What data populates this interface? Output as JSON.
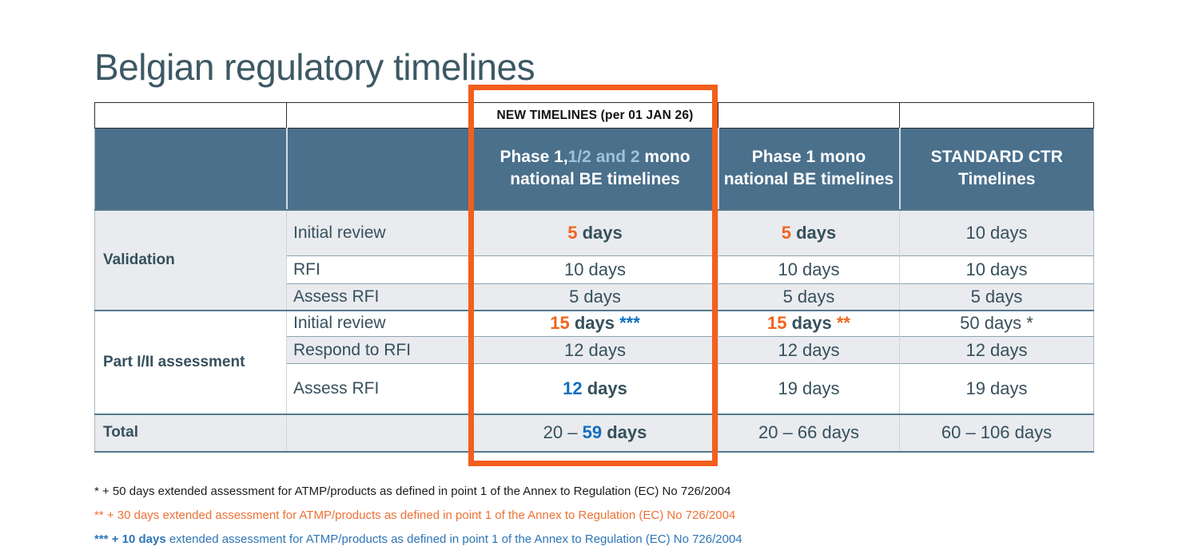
{
  "title": "Belgian regulatory timelines",
  "colors": {
    "header_bg": "#4a708c",
    "highlight_border": "#f25f1d",
    "accent_orange": "#f0651c",
    "accent_blue": "#0f6fc0",
    "light_row": "#e9ebef",
    "body_text": "#36505c"
  },
  "table": {
    "banner": "NEW TIMELINES (per 01 JAN 26)",
    "headers": {
      "col3": [
        {
          "t": "Phase 1,",
          "s": "white"
        },
        {
          "t": "1/2 and 2",
          "s": "lightblue"
        },
        {
          "t": " mono national BE timelines",
          "s": "white"
        }
      ],
      "col4": [
        {
          "t": "Phase 1 mono national BE timelines",
          "s": "white"
        }
      ],
      "col5": [
        {
          "t": "STANDARD CTR Timelines",
          "s": "white"
        }
      ]
    },
    "groups": {
      "validation": "Validation",
      "part": "Part I/II assessment",
      "total": "Total"
    },
    "rows": [
      {
        "step": "Initial review",
        "c3": [
          {
            "t": "5",
            "s": "orange"
          },
          {
            "t": " days",
            "s": "bold"
          }
        ],
        "c4": [
          {
            "t": "5",
            "s": "orange"
          },
          {
            "t": " days",
            "s": "bold"
          }
        ],
        "c5": [
          {
            "t": "10 days",
            "s": "plain"
          }
        ]
      },
      {
        "step": "RFI",
        "c3": [
          {
            "t": "10 days",
            "s": "plain"
          }
        ],
        "c4": [
          {
            "t": "10 days",
            "s": "plain"
          }
        ],
        "c5": [
          {
            "t": "10 days",
            "s": "plain"
          }
        ]
      },
      {
        "step": "Assess RFI",
        "c3": [
          {
            "t": "5 days",
            "s": "plain"
          }
        ],
        "c4": [
          {
            "t": "5 days",
            "s": "plain"
          }
        ],
        "c5": [
          {
            "t": "5 days",
            "s": "plain"
          }
        ]
      },
      {
        "step": "Initial review",
        "c3": [
          {
            "t": "15",
            "s": "orange"
          },
          {
            "t": " days ",
            "s": "bold"
          },
          {
            "t": "***",
            "s": "blue"
          }
        ],
        "c4": [
          {
            "t": "15",
            "s": "orange"
          },
          {
            "t": " days ",
            "s": "bold"
          },
          {
            "t": "**",
            "s": "orange"
          }
        ],
        "c5": [
          {
            "t": "50 days *",
            "s": "plain"
          }
        ]
      },
      {
        "step": "Respond to RFI",
        "c3": [
          {
            "t": "12 days",
            "s": "plain"
          }
        ],
        "c4": [
          {
            "t": "12 days",
            "s": "plain"
          }
        ],
        "c5": [
          {
            "t": "12 days",
            "s": "plain"
          }
        ]
      },
      {
        "step": "Assess RFI",
        "c3": [
          {
            "t": "12",
            "s": "blue"
          },
          {
            "t": " days",
            "s": "bold"
          }
        ],
        "c4": [
          {
            "t": "19 days",
            "s": "plain"
          }
        ],
        "c5": [
          {
            "t": "19 days",
            "s": "plain"
          }
        ]
      }
    ],
    "total": {
      "c3": [
        {
          "t": "20 – ",
          "s": "plain"
        },
        {
          "t": "59",
          "s": "blue"
        },
        {
          "t": " days",
          "s": "bold"
        }
      ],
      "c4": [
        {
          "t": "20 – 66 days",
          "s": "plain"
        }
      ],
      "c5": [
        {
          "t": "60 – 106 days",
          "s": "plain"
        }
      ]
    }
  },
  "footnotes": [
    [
      {
        "t": "* + 50 days extended assessment for ATMP/products as defined in point 1 of the Annex to Regulation (EC) No 726/2004",
        "s": "fn-black"
      }
    ],
    [
      {
        "t": "** + 30 days extended assessment for ATMP/products as defined in point 1 of the Annex to Regulation (EC) No 726/2004",
        "s": "fn-orange"
      }
    ],
    [
      {
        "t": "*** ",
        "s": "fn-blue-bold"
      },
      {
        "t": "+ 10 days",
        "s": "fn-blue-bold"
      },
      {
        "t": " extended assessment for ATMP/products as defined in point 1 of the Annex to Regulation (EC) No 726/2004",
        "s": "fn-blue"
      }
    ]
  ]
}
